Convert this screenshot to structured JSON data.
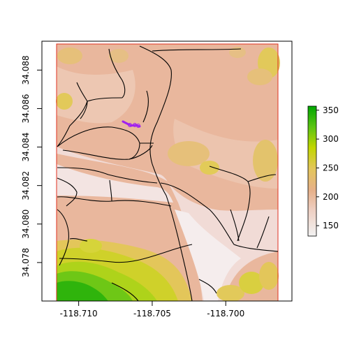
{
  "map": {
    "x_ticks": [
      "-118.710",
      "-118.705",
      "-118.700"
    ],
    "x_tick_values": [
      -118.71,
      -118.705,
      -118.7
    ],
    "y_ticks": [
      "34.078",
      "34.080",
      "34.082",
      "34.084",
      "34.086",
      "34.088"
    ],
    "y_tick_values": [
      34.078,
      34.08,
      34.082,
      34.084,
      34.086,
      34.088
    ],
    "xlim": [
      -118.7125,
      -118.6955
    ],
    "ylim": [
      34.076,
      34.0895
    ],
    "raster_extent": {
      "xmin": -118.711,
      "xmax": -118.6967,
      "ymin": 34.076,
      "ymax": 34.0895
    },
    "extent_border_color": "#e03020",
    "lines_color": "#000000",
    "highlight_color": "#a020f0"
  },
  "legend": {
    "labels": [
      "150",
      "200",
      "250",
      "300",
      "350"
    ],
    "values": [
      150,
      200,
      250,
      300,
      350
    ],
    "range": [
      132,
      357
    ],
    "colors": [
      "#f2f2f2",
      "#eecfc2",
      "#e6b08a",
      "#e3c65a",
      "#c2d600",
      "#5bc412",
      "#00a600"
    ]
  }
}
